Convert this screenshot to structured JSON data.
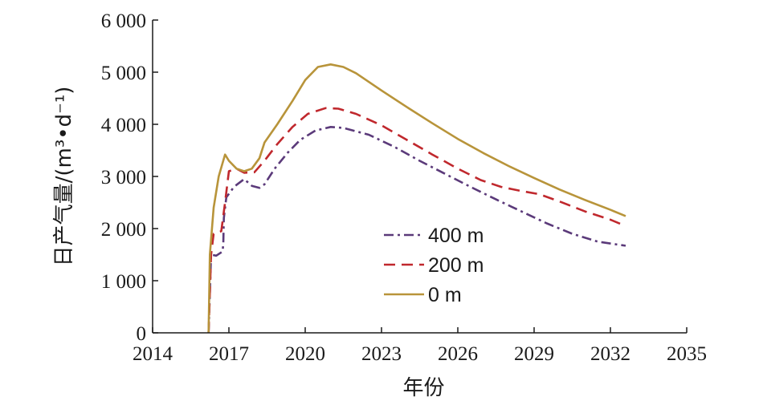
{
  "chart_data": {
    "type": "line",
    "title": "",
    "xlabel": "年份",
    "ylabel": "日产气量/(m³•d⁻¹)",
    "xlim": [
      2014,
      2035
    ],
    "ylim": [
      0,
      6000
    ],
    "x_ticks": [
      2014,
      2017,
      2020,
      2023,
      2026,
      2029,
      2032,
      2035
    ],
    "x_tick_labels": [
      "2014",
      "2017",
      "2020",
      "2023",
      "2026",
      "2029",
      "2032",
      "2035"
    ],
    "y_ticks": [
      0,
      1000,
      2000,
      3000,
      4000,
      5000,
      6000
    ],
    "y_tick_labels": [
      "0",
      "1 000",
      "2 000",
      "3 000",
      "4 000",
      "5 000",
      "6 000"
    ],
    "grid": false,
    "legend_position": "center",
    "series": [
      {
        "name": "400 m",
        "color": "#5b3a7a",
        "dash": "dash-dot",
        "points": [
          [
            2016.2,
            0
          ],
          [
            2016.3,
            1500
          ],
          [
            2016.5,
            1480
          ],
          [
            2016.75,
            1560
          ],
          [
            2016.78,
            1700
          ],
          [
            2016.8,
            2200
          ],
          [
            2016.9,
            2600
          ],
          [
            2017.2,
            2800
          ],
          [
            2017.6,
            2950
          ],
          [
            2017.9,
            2820
          ],
          [
            2018.2,
            2780
          ],
          [
            2018.4,
            2850
          ],
          [
            2018.8,
            3150
          ],
          [
            2019.3,
            3450
          ],
          [
            2019.8,
            3700
          ],
          [
            2020.4,
            3880
          ],
          [
            2021.0,
            3950
          ],
          [
            2021.5,
            3930
          ],
          [
            2022.5,
            3800
          ],
          [
            2023.5,
            3570
          ],
          [
            2024.5,
            3300
          ],
          [
            2025.5,
            3050
          ],
          [
            2026.5,
            2800
          ],
          [
            2027.5,
            2560
          ],
          [
            2028.5,
            2330
          ],
          [
            2029.5,
            2100
          ],
          [
            2030.5,
            1900
          ],
          [
            2031.5,
            1750
          ],
          [
            2032.6,
            1670
          ]
        ]
      },
      {
        "name": "200 m",
        "color": "#c0282d",
        "dash": "dashed",
        "points": [
          [
            2016.2,
            0
          ],
          [
            2016.3,
            1500
          ],
          [
            2016.4,
            1900
          ],
          [
            2016.7,
            1950
          ],
          [
            2016.85,
            2500
          ],
          [
            2017.0,
            3100
          ],
          [
            2017.3,
            3150
          ],
          [
            2017.6,
            3070
          ],
          [
            2018.0,
            3080
          ],
          [
            2018.4,
            3300
          ],
          [
            2018.9,
            3620
          ],
          [
            2019.5,
            3950
          ],
          [
            2020.1,
            4200
          ],
          [
            2020.8,
            4310
          ],
          [
            2021.3,
            4300
          ],
          [
            2022.0,
            4200
          ],
          [
            2023.0,
            3980
          ],
          [
            2024.0,
            3700
          ],
          [
            2025.0,
            3420
          ],
          [
            2026.0,
            3150
          ],
          [
            2026.9,
            2930
          ],
          [
            2027.7,
            2800
          ],
          [
            2028.5,
            2720
          ],
          [
            2029.2,
            2660
          ],
          [
            2030.0,
            2520
          ],
          [
            2031.0,
            2330
          ],
          [
            2032.0,
            2170
          ],
          [
            2032.6,
            2050
          ]
        ]
      },
      {
        "name": "0 m",
        "color": "#b8943a",
        "dash": "solid",
        "points": [
          [
            2016.2,
            0
          ],
          [
            2016.25,
            1500
          ],
          [
            2016.4,
            2400
          ],
          [
            2016.6,
            3000
          ],
          [
            2016.85,
            3420
          ],
          [
            2017.0,
            3300
          ],
          [
            2017.3,
            3150
          ],
          [
            2017.6,
            3100
          ],
          [
            2017.9,
            3150
          ],
          [
            2018.2,
            3350
          ],
          [
            2018.4,
            3650
          ],
          [
            2018.9,
            4000
          ],
          [
            2019.5,
            4450
          ],
          [
            2020.0,
            4850
          ],
          [
            2020.5,
            5100
          ],
          [
            2021.0,
            5150
          ],
          [
            2021.5,
            5100
          ],
          [
            2022.0,
            4980
          ],
          [
            2023.0,
            4650
          ],
          [
            2024.0,
            4330
          ],
          [
            2025.0,
            4020
          ],
          [
            2026.0,
            3720
          ],
          [
            2027.0,
            3450
          ],
          [
            2028.0,
            3200
          ],
          [
            2029.0,
            2970
          ],
          [
            2030.0,
            2750
          ],
          [
            2031.0,
            2550
          ],
          [
            2032.0,
            2360
          ],
          [
            2032.6,
            2240
          ]
        ]
      }
    ]
  }
}
